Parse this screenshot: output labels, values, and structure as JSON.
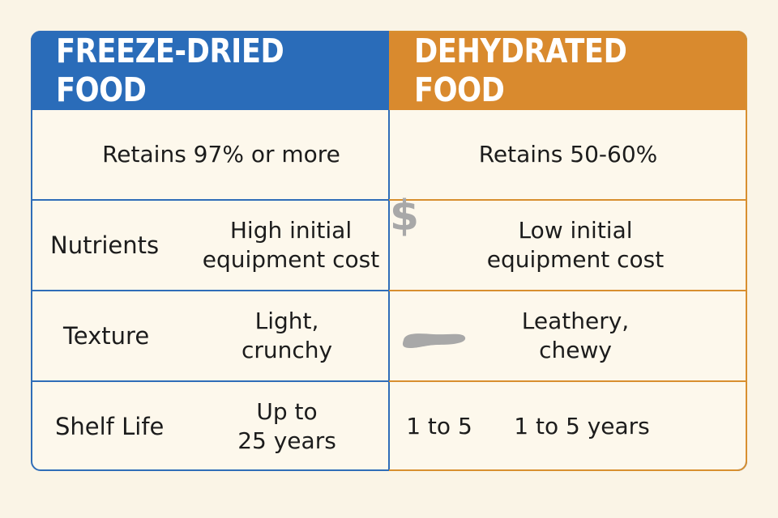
{
  "table": {
    "headers": {
      "left": "FREEZE-DRIED FOOD",
      "right": "DEHYDRATED FOOD"
    },
    "rows": [
      {
        "label": "",
        "freeze_dried": [
          "Retains 97% or more"
        ],
        "dehydrated": [
          "Retains 50-60%"
        ],
        "icon": ""
      },
      {
        "label": "Nutrients",
        "freeze_dried": [
          "High initial",
          "equipment cost"
        ],
        "dehydrated": [
          "Low initial",
          "equipment cost"
        ],
        "icon": "dollar-icon",
        "icon_glyph": "$"
      },
      {
        "label": "Texture",
        "freeze_dried": [
          "Light,",
          "crunchy"
        ],
        "dehydrated": [
          "Leathery,",
          "chewy"
        ],
        "icon": "jerky-icon"
      },
      {
        "label": "Shelf Life",
        "freeze_dried": [
          "Up to",
          "25 years"
        ],
        "dehydrated_extra": "1 to 5",
        "dehydrated": [
          "1 to 5 years"
        ],
        "icon": ""
      }
    ]
  },
  "colors": {
    "background": "#faf4e6",
    "freeze_dried_accent": "#2a6cb9",
    "dehydrated_accent": "#d98a2e",
    "text": "#1c1c1c",
    "icon_gray": "#a8a8a8"
  }
}
